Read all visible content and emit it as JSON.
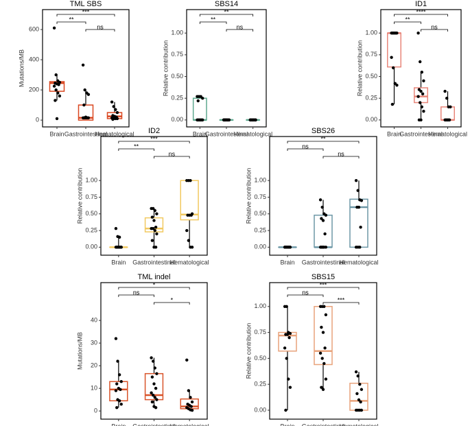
{
  "chart_data": [
    {
      "type": "box",
      "title": "TML SBS",
      "ylabel": "Mutations/MB",
      "categories": [
        "Brain",
        "Gastrointestinal",
        "Hematological"
      ],
      "color": "#d9461f",
      "ylim": [
        -45,
        732
      ],
      "yticks": [
        0,
        200,
        400,
        600
      ],
      "boxes": [
        {
          "q1": 191,
          "median": 245,
          "q3": 255,
          "whislo": 130,
          "whishi": 300
        },
        {
          "q1": 0,
          "median": 15,
          "q3": 100,
          "whislo": 0,
          "whishi": 200
        },
        {
          "q1": 10,
          "median": 25,
          "q3": 50,
          "whislo": 5,
          "whishi": 120
        }
      ],
      "points": [
        [
          610,
          300,
          260,
          250,
          245,
          240,
          235,
          225,
          200,
          180,
          160,
          130,
          10
        ],
        [
          365,
          200,
          180,
          170,
          100,
          20,
          15,
          15,
          15,
          15,
          15,
          15,
          15
        ],
        [
          120,
          90,
          70,
          50,
          30,
          25,
          20,
          15,
          10,
          10,
          10,
          5
        ]
      ],
      "comparisons": [
        {
          "groups": [
            "Brain",
            "Hematological"
          ],
          "label": "***"
        },
        {
          "groups": [
            "Brain",
            "Gastrointestinal"
          ],
          "label": "**"
        },
        {
          "groups": [
            "Gastrointestinal",
            "Hematological"
          ],
          "label": "ns"
        }
      ]
    },
    {
      "type": "box",
      "title": "SBS14",
      "ylabel": "Relative contribution",
      "categories": [
        "Brain",
        "Gastrointestinal",
        "Hematological"
      ],
      "color": "#5fa98f",
      "ylim": [
        -0.08,
        1.27
      ],
      "yticks": [
        {
          "value": 0,
          "label": "0.00"
        },
        {
          "value": 0.25,
          "label": "0.25"
        },
        {
          "value": 0.5,
          "label": "0.50"
        },
        {
          "value": 0.75,
          "label": "0.75"
        },
        {
          "value": 1,
          "label": "1.00"
        }
      ],
      "boxes": [
        {
          "q1": 0,
          "median": 0,
          "q3": 0.25,
          "whislo": 0,
          "whishi": 0.27
        },
        {
          "q1": 0,
          "median": 0,
          "q3": 0,
          "whislo": 0,
          "whishi": 0
        },
        {
          "q1": 0,
          "median": 0,
          "q3": 0,
          "whislo": 0,
          "whishi": 0
        }
      ],
      "points": [
        [
          0.27,
          0.27,
          0.27,
          0.25,
          0.22,
          0,
          0,
          0,
          0,
          0,
          0,
          0
        ],
        [
          0,
          0,
          0,
          0,
          0,
          0,
          0,
          0,
          0,
          0,
          0,
          0,
          0
        ],
        [
          0,
          0,
          0,
          0,
          0,
          0,
          0,
          0,
          0,
          0,
          0
        ]
      ],
      "comparisons": [
        {
          "groups": [
            "Brain",
            "Hematological"
          ],
          "label": "**"
        },
        {
          "groups": [
            "Brain",
            "Gastrointestinal"
          ],
          "label": "**"
        },
        {
          "groups": [
            "Gastrointestinal",
            "Hematological"
          ],
          "label": "ns"
        }
      ]
    },
    {
      "type": "box",
      "title": "ID1",
      "ylabel": "Relative contribution",
      "categories": [
        "Brain",
        "Gastrointestinal",
        "Hematological"
      ],
      "color": "#e8867a",
      "ylim": [
        -0.08,
        1.27
      ],
      "yticks": [
        {
          "value": 0,
          "label": "0.00"
        },
        {
          "value": 0.25,
          "label": "0.25"
        },
        {
          "value": 0.5,
          "label": "0.50"
        },
        {
          "value": 0.75,
          "label": "0.75"
        },
        {
          "value": 1,
          "label": "1.00"
        }
      ],
      "boxes": [
        {
          "q1": 0.61,
          "median": 1,
          "q3": 1,
          "whislo": 0.18,
          "whishi": 1
        },
        {
          "q1": 0.2,
          "median": 0.27,
          "q3": 0.37,
          "whislo": 0,
          "whishi": 0.55
        },
        {
          "q1": 0,
          "median": 0,
          "q3": 0.15,
          "whislo": 0,
          "whishi": 0.33
        }
      ],
      "points": [
        [
          1,
          1,
          1,
          1,
          1,
          1,
          1,
          0.72,
          0.6,
          0.42,
          0.4,
          0.18
        ],
        [
          1,
          0.67,
          0.55,
          0.45,
          0.35,
          0.33,
          0.3,
          0.27,
          0.2,
          0.15,
          0.1,
          0,
          0
        ],
        [
          0.33,
          0.25,
          0.15,
          0.15,
          0,
          0,
          0,
          0,
          0,
          0
        ]
      ],
      "comparisons": [
        {
          "groups": [
            "Brain",
            "Hematological"
          ],
          "label": "****"
        },
        {
          "groups": [
            "Brain",
            "Gastrointestinal"
          ],
          "label": "**"
        },
        {
          "groups": [
            "Gastrointestinal",
            "Hematological"
          ],
          "label": "ns"
        }
      ]
    },
    {
      "type": "box",
      "title": "ID2",
      "ylabel": "Relative contribution",
      "categories": [
        "Brain",
        "Gastrointestinal",
        "Hematological"
      ],
      "color": "#f2c960",
      "ylim": [
        -0.12,
        1.66
      ],
      "yticks": [
        {
          "value": 0,
          "label": "0.00"
        },
        {
          "value": 0.25,
          "label": "0.25"
        },
        {
          "value": 0.5,
          "label": "0.50"
        },
        {
          "value": 0.75,
          "label": "0.75"
        },
        {
          "value": 1,
          "label": "1.00"
        }
      ],
      "boxes": [
        {
          "q1": 0,
          "median": 0,
          "q3": 0,
          "whislo": 0,
          "whishi": 0.15
        },
        {
          "q1": 0.23,
          "median": 0.28,
          "q3": 0.44,
          "whislo": 0,
          "whishi": 0.58
        },
        {
          "q1": 0.41,
          "median": 0.49,
          "q3": 1,
          "whislo": 0,
          "whishi": 1
        }
      ],
      "points": [
        [
          0.28,
          0.16,
          0.15,
          0,
          0,
          0,
          0,
          0,
          0,
          0,
          0,
          0
        ],
        [
          0.58,
          0.58,
          0.55,
          0.5,
          0.45,
          0.4,
          0.3,
          0.28,
          0.28,
          0.25,
          0.2,
          0.1,
          0,
          0
        ],
        [
          1,
          1,
          1,
          0.5,
          0.48,
          0.48,
          0.48,
          0.25,
          0.1,
          0,
          0
        ]
      ],
      "comparisons": [
        {
          "groups": [
            "Brain",
            "Hematological"
          ],
          "label": "***"
        },
        {
          "groups": [
            "Brain",
            "Gastrointestinal"
          ],
          "label": "**"
        },
        {
          "groups": [
            "Gastrointestinal",
            "Hematological"
          ],
          "label": "ns"
        }
      ]
    },
    {
      "type": "box",
      "title": "SBS26",
      "ylabel": "Relative contribution",
      "categories": [
        "Brain",
        "Gastrointestinal",
        "Hematological"
      ],
      "color": "#6d97a6",
      "ylim": [
        -0.12,
        1.66
      ],
      "yticks": [
        {
          "value": 0,
          "label": "0.00"
        },
        {
          "value": 0.25,
          "label": "0.25"
        },
        {
          "value": 0.5,
          "label": "0.50"
        },
        {
          "value": 0.75,
          "label": "0.75"
        },
        {
          "value": 1,
          "label": "1.00"
        }
      ],
      "boxes": [
        {
          "q1": 0,
          "median": 0,
          "q3": 0,
          "whislo": 0,
          "whishi": 0
        },
        {
          "q1": 0,
          "median": 0,
          "q3": 0.48,
          "whislo": 0,
          "whishi": 0.71
        },
        {
          "q1": 0,
          "median": 0.6,
          "q3": 0.72,
          "whislo": 0,
          "whishi": 1
        }
      ],
      "points": [
        [
          0,
          0,
          0,
          0,
          0,
          0,
          0,
          0,
          0,
          0,
          0,
          0
        ],
        [
          0.71,
          0.6,
          0.5,
          0.48,
          0.43,
          0.4,
          0.2,
          0,
          0,
          0,
          0,
          0,
          0
        ],
        [
          1,
          0.85,
          0.71,
          0.7,
          0.6,
          0.6,
          0.3,
          0,
          0,
          0
        ]
      ],
      "comparisons": [
        {
          "groups": [
            "Brain",
            "Hematological"
          ],
          "label": "**"
        },
        {
          "groups": [
            "Brain",
            "Gastrointestinal"
          ],
          "label": "ns"
        },
        {
          "groups": [
            "Gastrointestinal",
            "Hematological"
          ],
          "label": "ns"
        }
      ]
    },
    {
      "type": "box",
      "title": "TML indel",
      "ylabel": "Mutations/MB",
      "categories": [
        "Brain",
        "Gastrointestinal",
        "Hematological"
      ],
      "color": "#d9542a",
      "ylim": [
        -3.6,
        56.7
      ],
      "yticks": [
        0,
        10,
        20,
        30,
        40
      ],
      "boxes": [
        {
          "q1": 4.5,
          "median": 9.5,
          "q3": 13,
          "whislo": 1.5,
          "whishi": 22
        },
        {
          "q1": 5,
          "median": 7,
          "q3": 16.5,
          "whislo": 1.5,
          "whishi": 23.5
        },
        {
          "q1": 1,
          "median": 2,
          "q3": 5.3,
          "whislo": 0.3,
          "whishi": 9
        }
      ],
      "points": [
        [
          32,
          22,
          16,
          13,
          12,
          10,
          9.5,
          9,
          5,
          4.5,
          3,
          1.5
        ],
        [
          23.5,
          22,
          19,
          16.5,
          15,
          12,
          10,
          8,
          7,
          6,
          5,
          4,
          2,
          1.5
        ],
        [
          22.5,
          9,
          6,
          4,
          3,
          2.5,
          2,
          1.5,
          1,
          0.5,
          0.3
        ]
      ],
      "comparisons": [
        {
          "groups": [
            "Brain",
            "Hematological"
          ],
          "label": "*"
        },
        {
          "groups": [
            "Brain",
            "Gastrointestinal"
          ],
          "label": "ns"
        },
        {
          "groups": [
            "Gastrointestinal",
            "Hematological"
          ],
          "label": "*"
        }
      ]
    },
    {
      "type": "box",
      "title": "SBS15",
      "ylabel": "Relative contribution",
      "categories": [
        "Brain",
        "Gastrointestinal",
        "Hematological"
      ],
      "color": "#e8a27a",
      "ylim": [
        -0.086,
        1.23
      ],
      "yticks": [
        {
          "value": 0,
          "label": "0.00"
        },
        {
          "value": 0.25,
          "label": "0.25"
        },
        {
          "value": 0.5,
          "label": "0.50"
        },
        {
          "value": 0.75,
          "label": "0.75"
        },
        {
          "value": 1,
          "label": "1.00"
        }
      ],
      "boxes": [
        {
          "q1": 0.57,
          "median": 0.72,
          "q3": 0.75,
          "whislo": 0,
          "whishi": 1
        },
        {
          "q1": 0.44,
          "median": 0.57,
          "q3": 1,
          "whislo": 0.2,
          "whishi": 1
        },
        {
          "q1": 0,
          "median": 0.09,
          "q3": 0.26,
          "whislo": 0,
          "whishi": 0.37
        }
      ],
      "points": [
        [
          1,
          1,
          0.75,
          0.74,
          0.73,
          0.73,
          0.7,
          0.6,
          0.5,
          0.3,
          0.22,
          0
        ],
        [
          1,
          1,
          1,
          0.92,
          0.8,
          0.75,
          0.6,
          0.55,
          0.5,
          0.45,
          0.3,
          0.22,
          0.2
        ],
        [
          0.37,
          0.33,
          0.25,
          0.2,
          0.16,
          0.1,
          0.08,
          0,
          0,
          0,
          0
        ]
      ],
      "comparisons": [
        {
          "groups": [
            "Brain",
            "Hematological"
          ],
          "label": "***"
        },
        {
          "groups": [
            "Brain",
            "Gastrointestinal"
          ],
          "label": "ns"
        },
        {
          "groups": [
            "Gastrointestinal",
            "Hematological"
          ],
          "label": "***"
        }
      ]
    }
  ]
}
